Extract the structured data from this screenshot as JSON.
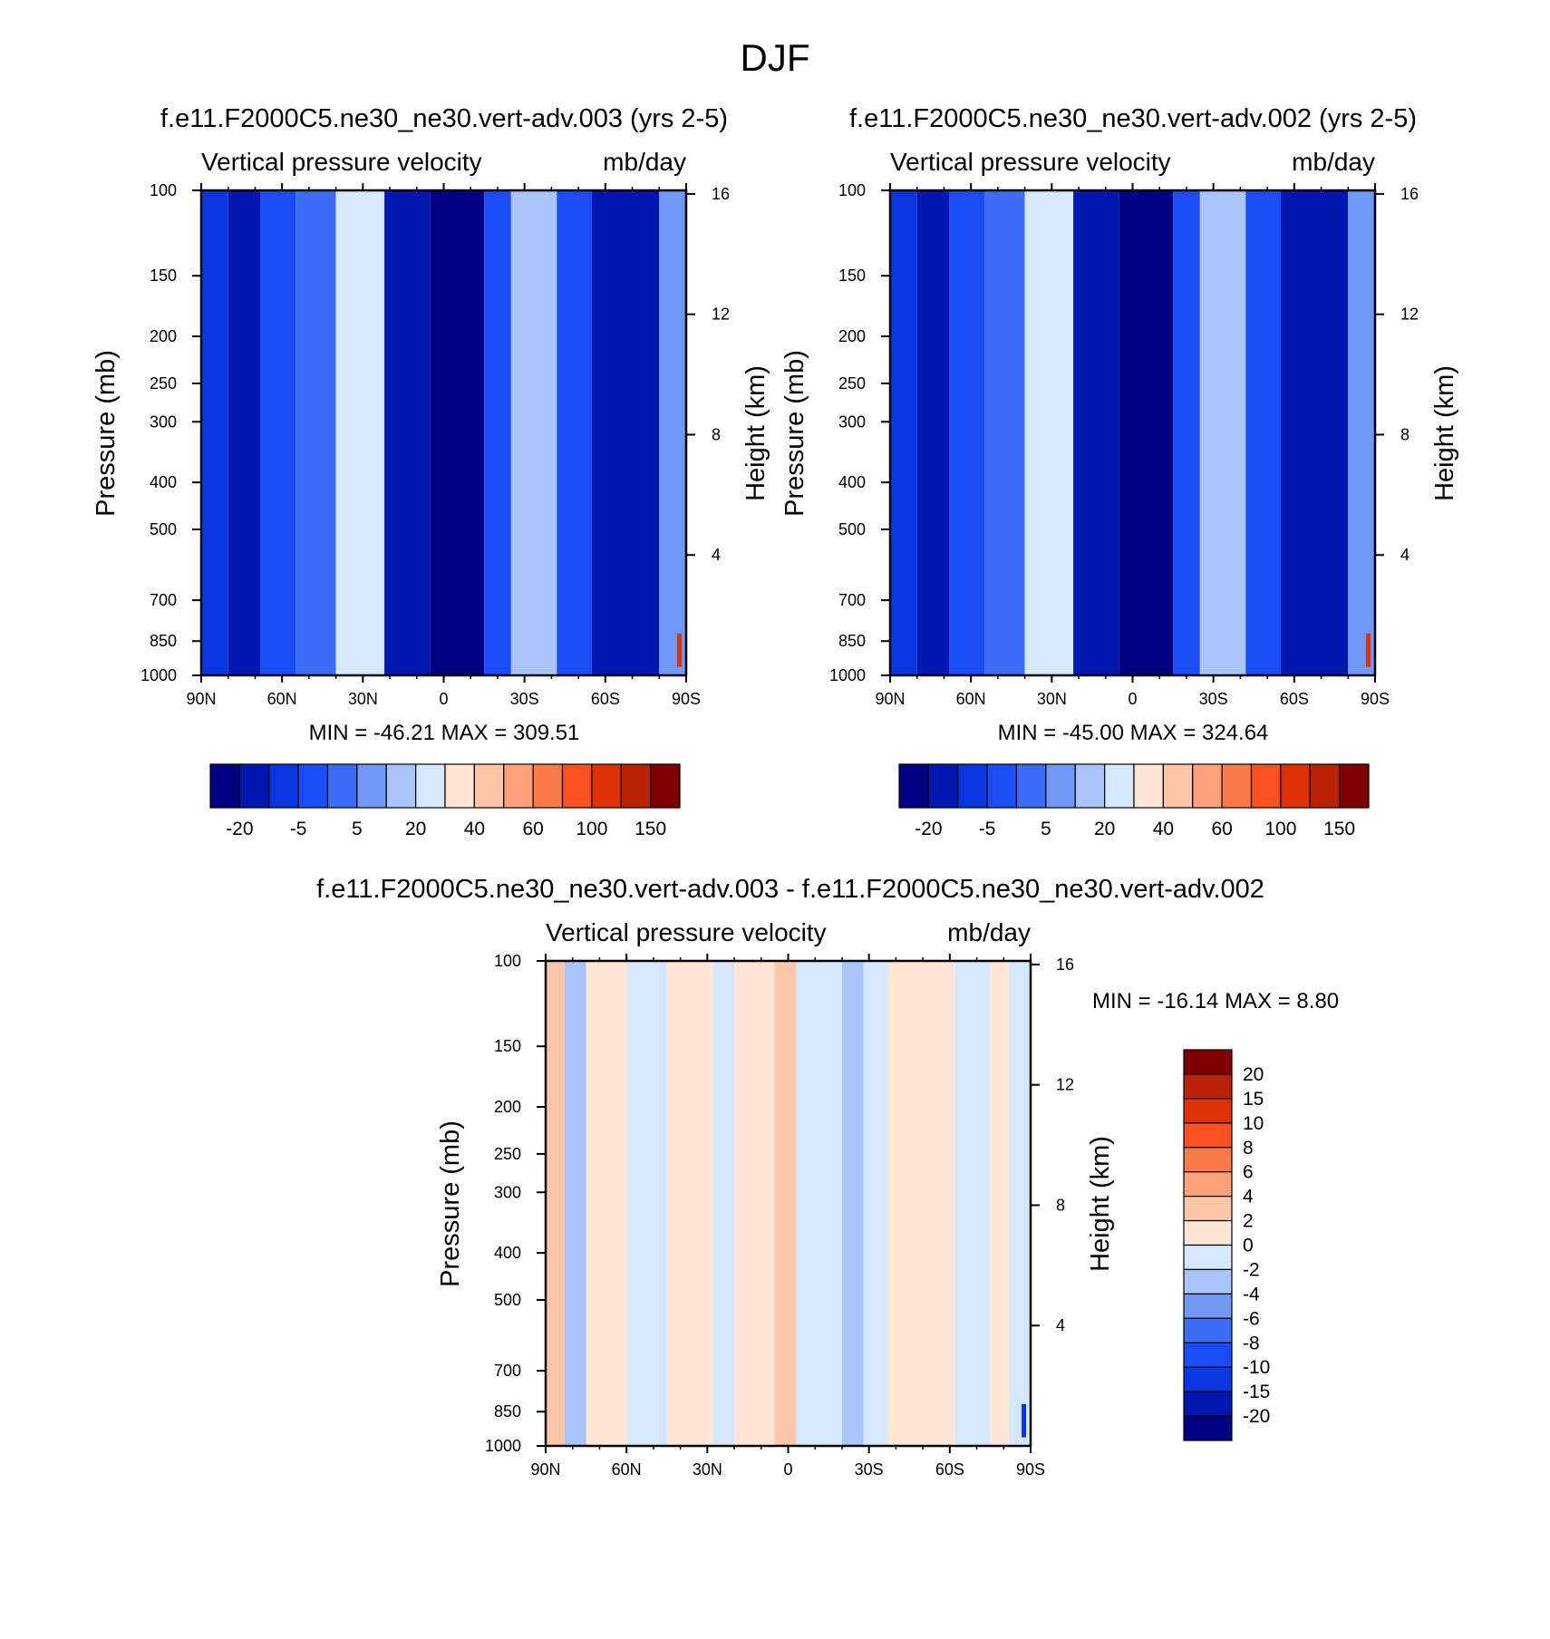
{
  "figure_title": "DJF",
  "colors": {
    "top_levels": [
      "#000080",
      "#0018b0",
      "#0a36df",
      "#1a4df5",
      "#3b6df5",
      "#6f98f7",
      "#a9c4f9",
      "#d6e7fb",
      "#fde6d5",
      "#fdc6a8",
      "#fca179",
      "#fa7a4c",
      "#fb5121",
      "#df3106",
      "#ba2208",
      "#7f0000"
    ],
    "diff_levels": [
      "#000080",
      "#0018b0",
      "#0a36df",
      "#1a4df5",
      "#3b6df5",
      "#6f98f7",
      "#a9c4f9",
      "#d6e7fb",
      "#fde6d5",
      "#fdc6a8",
      "#fca179",
      "#fa7a4c",
      "#fb5121",
      "#df3106",
      "#ba2208",
      "#7f0000"
    ],
    "frame": "#000000"
  },
  "chart_data": [
    {
      "type": "heatmap",
      "title": "f.e11.F2000C5.ne30_ne30.vert-adv.003 (yrs 2-5)",
      "subtitle_left": "Vertical pressure velocity",
      "subtitle_right": "mb/day",
      "xlabel": "",
      "ylabel": "Pressure (mb)",
      "ylabel_right": "Height (km)",
      "x_ticks": [
        {
          "v": 90,
          "label": "90N"
        },
        {
          "v": 60,
          "label": "60N"
        },
        {
          "v": 30,
          "label": "30N"
        },
        {
          "v": 0,
          "label": "0"
        },
        {
          "v": -30,
          "label": "30S"
        },
        {
          "v": -60,
          "label": "60S"
        },
        {
          "v": -90,
          "label": "90S"
        }
      ],
      "xlim": [
        90,
        -90
      ],
      "y_ticks": [
        {
          "v": 100,
          "label": "100"
        },
        {
          "v": 150,
          "label": "150"
        },
        {
          "v": 200,
          "label": "200"
        },
        {
          "v": 250,
          "label": "250"
        },
        {
          "v": 300,
          "label": "300"
        },
        {
          "v": 400,
          "label": "400"
        },
        {
          "v": 500,
          "label": "500"
        },
        {
          "v": 700,
          "label": "700"
        },
        {
          "v": 850,
          "label": "850"
        },
        {
          "v": 1000,
          "label": "1000"
        }
      ],
      "ylim": [
        1000,
        100
      ],
      "y_scale": "log",
      "height_ticks": [
        {
          "v": 16,
          "label": "16"
        },
        {
          "v": 12,
          "label": "12"
        },
        {
          "v": 8,
          "label": "8"
        },
        {
          "v": 4,
          "label": "4"
        }
      ],
      "min_max_text": "MIN = -46.21   MAX = 309.51",
      "colorbar": {
        "orientation": "horizontal",
        "boundaries": [
          -25,
          -20,
          -10,
          -5,
          0,
          5,
          10,
          20,
          30,
          40,
          50,
          60,
          80,
          100,
          120,
          150,
          200
        ],
        "labels": [
          "-20",
          "-5",
          "5",
          "20",
          "40",
          "60",
          "100",
          "150"
        ]
      },
      "field": {
        "bands": [
          {
            "lat_range": [
              90,
              80
            ],
            "level": 2
          },
          {
            "lat_range": [
              80,
              68
            ],
            "level": 1
          },
          {
            "lat_range": [
              68,
              55
            ],
            "level": 3
          },
          {
            "lat_range": [
              55,
              40
            ],
            "level": 4
          },
          {
            "lat_range": [
              40,
              22
            ],
            "level": 7
          },
          {
            "lat_range": [
              22,
              5
            ],
            "level": 1
          },
          {
            "lat_range": [
              5,
              -15
            ],
            "level": 0
          },
          {
            "lat_range": [
              -15,
              -25
            ],
            "level": 3
          },
          {
            "lat_range": [
              -25,
              -42
            ],
            "level": 6
          },
          {
            "lat_range": [
              -42,
              -55
            ],
            "level": 3
          },
          {
            "lat_range": [
              -55,
              -80
            ],
            "level": 1
          },
          {
            "lat_range": [
              -80,
              -90
            ],
            "level": 5
          }
        ],
        "polar_max_lat": -88,
        "polar_max_level": 13
      }
    },
    {
      "type": "heatmap",
      "title": "f.e11.F2000C5.ne30_ne30.vert-adv.002 (yrs 2-5)",
      "subtitle_left": "Vertical pressure velocity",
      "subtitle_right": "mb/day",
      "xlabel": "",
      "ylabel": "Pressure (mb)",
      "ylabel_right": "Height (km)",
      "x_ticks": [
        {
          "v": 90,
          "label": "90N"
        },
        {
          "v": 60,
          "label": "60N"
        },
        {
          "v": 30,
          "label": "30N"
        },
        {
          "v": 0,
          "label": "0"
        },
        {
          "v": -30,
          "label": "30S"
        },
        {
          "v": -60,
          "label": "60S"
        },
        {
          "v": -90,
          "label": "90S"
        }
      ],
      "xlim": [
        90,
        -90
      ],
      "y_ticks": [
        {
          "v": 100,
          "label": "100"
        },
        {
          "v": 150,
          "label": "150"
        },
        {
          "v": 200,
          "label": "200"
        },
        {
          "v": 250,
          "label": "250"
        },
        {
          "v": 300,
          "label": "300"
        },
        {
          "v": 400,
          "label": "400"
        },
        {
          "v": 500,
          "label": "500"
        },
        {
          "v": 700,
          "label": "700"
        },
        {
          "v": 850,
          "label": "850"
        },
        {
          "v": 1000,
          "label": "1000"
        }
      ],
      "ylim": [
        1000,
        100
      ],
      "y_scale": "log",
      "height_ticks": [
        {
          "v": 16,
          "label": "16"
        },
        {
          "v": 12,
          "label": "12"
        },
        {
          "v": 8,
          "label": "8"
        },
        {
          "v": 4,
          "label": "4"
        }
      ],
      "min_max_text": "MIN = -45.00   MAX = 324.64",
      "colorbar": {
        "orientation": "horizontal",
        "boundaries": [
          -25,
          -20,
          -10,
          -5,
          0,
          5,
          10,
          20,
          30,
          40,
          50,
          60,
          80,
          100,
          120,
          150,
          200
        ],
        "labels": [
          "-20",
          "-5",
          "5",
          "20",
          "40",
          "60",
          "100",
          "150"
        ]
      },
      "field": {
        "bands": [
          {
            "lat_range": [
              90,
              80
            ],
            "level": 2
          },
          {
            "lat_range": [
              80,
              68
            ],
            "level": 1
          },
          {
            "lat_range": [
              68,
              55
            ],
            "level": 3
          },
          {
            "lat_range": [
              55,
              40
            ],
            "level": 4
          },
          {
            "lat_range": [
              40,
              22
            ],
            "level": 7
          },
          {
            "lat_range": [
              22,
              5
            ],
            "level": 1
          },
          {
            "lat_range": [
              5,
              -15
            ],
            "level": 0
          },
          {
            "lat_range": [
              -15,
              -25
            ],
            "level": 3
          },
          {
            "lat_range": [
              -25,
              -42
            ],
            "level": 6
          },
          {
            "lat_range": [
              -42,
              -55
            ],
            "level": 3
          },
          {
            "lat_range": [
              -55,
              -80
            ],
            "level": 1
          },
          {
            "lat_range": [
              -80,
              -90
            ],
            "level": 5
          }
        ],
        "polar_max_lat": -88,
        "polar_max_level": 13
      }
    },
    {
      "type": "heatmap",
      "title": "f.e11.F2000C5.ne30_ne30.vert-adv.003 - f.e11.F2000C5.ne30_ne30.vert-adv.002",
      "subtitle_left": "Vertical pressure velocity",
      "subtitle_right": "mb/day",
      "xlabel": "",
      "ylabel": "Pressure (mb)",
      "ylabel_right": "Height (km)",
      "x_ticks": [
        {
          "v": 90,
          "label": "90N"
        },
        {
          "v": 60,
          "label": "60N"
        },
        {
          "v": 30,
          "label": "30N"
        },
        {
          "v": 0,
          "label": "0"
        },
        {
          "v": -30,
          "label": "30S"
        },
        {
          "v": -60,
          "label": "60S"
        },
        {
          "v": -90,
          "label": "90S"
        }
      ],
      "xlim": [
        90,
        -90
      ],
      "y_ticks": [
        {
          "v": 100,
          "label": "100"
        },
        {
          "v": 150,
          "label": "150"
        },
        {
          "v": 200,
          "label": "200"
        },
        {
          "v": 250,
          "label": "250"
        },
        {
          "v": 300,
          "label": "300"
        },
        {
          "v": 400,
          "label": "400"
        },
        {
          "v": 500,
          "label": "500"
        },
        {
          "v": 700,
          "label": "700"
        },
        {
          "v": 850,
          "label": "850"
        },
        {
          "v": 1000,
          "label": "1000"
        }
      ],
      "ylim": [
        1000,
        100
      ],
      "y_scale": "log",
      "height_ticks": [
        {
          "v": 16,
          "label": "16"
        },
        {
          "v": 12,
          "label": "12"
        },
        {
          "v": 8,
          "label": "8"
        },
        {
          "v": 4,
          "label": "4"
        }
      ],
      "min_max_text": "MIN = -16.14   MAX =    8.80",
      "colorbar": {
        "orientation": "vertical",
        "boundaries": [
          -25,
          -20,
          -15,
          -10,
          -8,
          -6,
          -4,
          -2,
          0,
          2,
          4,
          6,
          8,
          10,
          15,
          20,
          25
        ],
        "labels": [
          "20",
          "15",
          "10",
          "8",
          "6",
          "4",
          "2",
          "0",
          "-2",
          "-4",
          "-6",
          "-8",
          "-10",
          "-15",
          "-20"
        ]
      },
      "field": {
        "bands": [
          {
            "lat_range": [
              90,
              83
            ],
            "level": 9
          },
          {
            "lat_range": [
              83,
              75
            ],
            "level": 6
          },
          {
            "lat_range": [
              75,
              60
            ],
            "level": 8
          },
          {
            "lat_range": [
              60,
              45
            ],
            "level": 7
          },
          {
            "lat_range": [
              45,
              28
            ],
            "level": 8
          },
          {
            "lat_range": [
              28,
              20
            ],
            "level": 7
          },
          {
            "lat_range": [
              20,
              5
            ],
            "level": 8
          },
          {
            "lat_range": [
              5,
              -3
            ],
            "level": 9
          },
          {
            "lat_range": [
              -3,
              -20
            ],
            "level": 7
          },
          {
            "lat_range": [
              -20,
              -28
            ],
            "level": 6
          },
          {
            "lat_range": [
              -28,
              -37
            ],
            "level": 7
          },
          {
            "lat_range": [
              -37,
              -62
            ],
            "level": 8
          },
          {
            "lat_range": [
              -62,
              -75
            ],
            "level": 7
          },
          {
            "lat_range": [
              -75,
              -82
            ],
            "level": 8
          },
          {
            "lat_range": [
              -82,
              -90
            ],
            "level": 7
          }
        ],
        "polar_max_lat": -88,
        "polar_max_level": 2
      }
    }
  ]
}
